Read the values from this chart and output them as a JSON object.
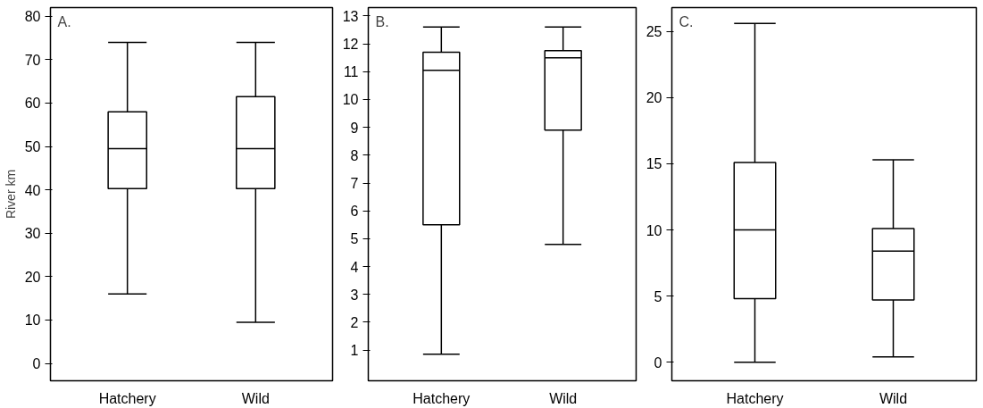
{
  "chart_data": [
    {
      "type": "box",
      "categories": [
        "Hatchery",
        "Wild"
      ],
      "ylabel": "River km",
      "annotations": [
        "A."
      ],
      "ylim": [
        -4,
        82
      ],
      "yticks": [
        0,
        10,
        20,
        30,
        40,
        50,
        60,
        70,
        80
      ],
      "grid": false,
      "boxes": [
        {
          "low": 16,
          "q1": 40.3,
          "median": 49.5,
          "q3": 58,
          "high": 74
        },
        {
          "low": 9.5,
          "q1": 40.3,
          "median": 49.5,
          "q3": 61.5,
          "high": 74
        }
      ]
    },
    {
      "type": "box",
      "categories": [
        "Hatchery",
        "Wild"
      ],
      "annotations": [
        "B."
      ],
      "ylim": [
        -0.1,
        13.3
      ],
      "yticks": [
        1,
        2,
        3,
        4,
        5,
        6,
        7,
        8,
        9,
        10,
        11,
        12,
        13
      ],
      "grid": false,
      "boxes": [
        {
          "low": 0.85,
          "q1": 5.5,
          "median": 11.05,
          "q3": 11.7,
          "high": 12.6
        },
        {
          "low": 4.8,
          "q1": 8.9,
          "median": 11.5,
          "q3": 11.75,
          "high": 12.6
        }
      ]
    },
    {
      "type": "box",
      "categories": [
        "Hatchery",
        "Wild"
      ],
      "annotations": [
        "C."
      ],
      "ylim": [
        -1.4,
        26.8
      ],
      "yticks": [
        0,
        5,
        10,
        15,
        20,
        25
      ],
      "grid": false,
      "boxes": [
        {
          "low": 0,
          "q1": 4.8,
          "median": 10,
          "q3": 15.1,
          "high": 25.6
        },
        {
          "low": 0.4,
          "q1": 4.7,
          "median": 8.4,
          "q3": 10.1,
          "high": 15.3
        }
      ]
    }
  ]
}
